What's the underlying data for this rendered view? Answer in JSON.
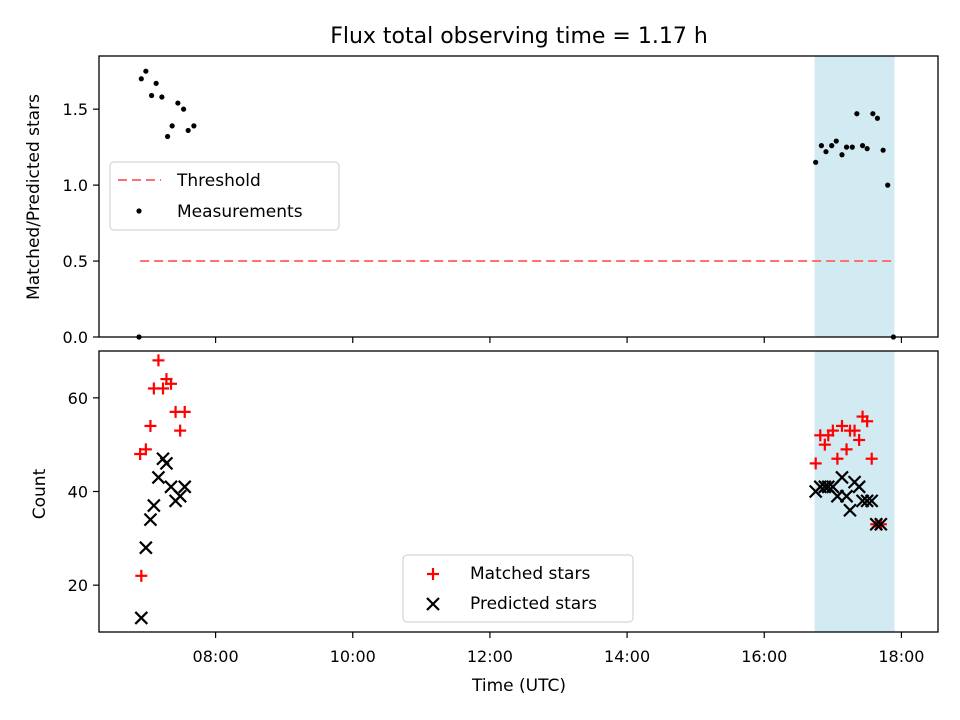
{
  "chart_data": [
    {
      "type": "scatter",
      "title": "Flux total observing time = 1.17 h",
      "xlabel": "",
      "ylabel": "Matched/Predicted stars",
      "xlim": [
        "06:18",
        "18:32"
      ],
      "ylim": [
        0,
        1.85
      ],
      "yticks": [
        "0.0",
        "0.5",
        "1.0",
        "1.5"
      ],
      "legend_position": "center-left",
      "highlight_band": {
        "x": [
          "16:44",
          "17:54"
        ],
        "color": "#add8e6"
      },
      "threshold": {
        "name": "Threshold",
        "value": 0.5,
        "x": [
          "06:54",
          "17:54"
        ],
        "color": "#ff7070"
      },
      "series": [
        {
          "name": "Measurements",
          "color": "#000000",
          "points": [
            [
              "06:53",
              0.0
            ],
            [
              "06:55",
              1.7
            ],
            [
              "06:59",
              1.75
            ],
            [
              "07:04",
              1.59
            ],
            [
              "07:08",
              1.67
            ],
            [
              "07:13",
              1.58
            ],
            [
              "07:18",
              1.32
            ],
            [
              "07:22",
              1.39
            ],
            [
              "07:27",
              1.54
            ],
            [
              "07:32",
              1.5
            ],
            [
              "07:36",
              1.36
            ],
            [
              "07:41",
              1.39
            ],
            [
              "16:45",
              1.15
            ],
            [
              "16:50",
              1.26
            ],
            [
              "16:54",
              1.22
            ],
            [
              "16:59",
              1.26
            ],
            [
              "17:03",
              1.29
            ],
            [
              "17:08",
              1.2
            ],
            [
              "17:12",
              1.25
            ],
            [
              "17:17",
              1.25
            ],
            [
              "17:21",
              1.47
            ],
            [
              "17:26",
              1.26
            ],
            [
              "17:30",
              1.24
            ],
            [
              "17:35",
              1.47
            ],
            [
              "17:39",
              1.44
            ],
            [
              "17:44",
              1.23
            ],
            [
              "17:48",
              1.0
            ],
            [
              "17:53",
              0.0
            ]
          ]
        }
      ]
    },
    {
      "type": "scatter",
      "title": "",
      "xlabel": "Time (UTC)",
      "ylabel": "Count",
      "xlim": [
        "06:18",
        "18:32"
      ],
      "ylim": [
        10,
        70
      ],
      "xticks": [
        "08:00",
        "10:00",
        "12:00",
        "14:00",
        "16:00",
        "18:00"
      ],
      "yticks": [
        "20",
        "40",
        "60"
      ],
      "legend_position": "lower-center",
      "highlight_band": {
        "x": [
          "16:44",
          "17:54"
        ],
        "color": "#add8e6"
      },
      "series": [
        {
          "name": "Matched stars",
          "marker": "plus",
          "color": "#ff0000",
          "points": [
            [
              "06:54",
              48
            ],
            [
              "06:55",
              22
            ],
            [
              "06:59",
              49
            ],
            [
              "07:03",
              54
            ],
            [
              "07:06",
              62
            ],
            [
              "07:10",
              68
            ],
            [
              "07:14",
              62
            ],
            [
              "07:17",
              64
            ],
            [
              "07:21",
              63
            ],
            [
              "07:25",
              57
            ],
            [
              "07:29",
              53
            ],
            [
              "07:33",
              57
            ],
            [
              "16:45",
              46
            ],
            [
              "16:49",
              52
            ],
            [
              "16:53",
              50
            ],
            [
              "16:56",
              52
            ],
            [
              "17:00",
              53
            ],
            [
              "17:04",
              47
            ],
            [
              "17:08",
              54
            ],
            [
              "17:12",
              49
            ],
            [
              "17:15",
              53
            ],
            [
              "17:19",
              53
            ],
            [
              "17:23",
              51
            ],
            [
              "17:26",
              56
            ],
            [
              "17:30",
              55
            ],
            [
              "17:34",
              47
            ],
            [
              "17:38",
              33
            ],
            [
              "17:42",
              33
            ]
          ]
        },
        {
          "name": "Predicted stars",
          "marker": "x",
          "color": "#000000",
          "points": [
            [
              "06:55",
              13
            ],
            [
              "06:59",
              28
            ],
            [
              "07:03",
              34
            ],
            [
              "07:06",
              37
            ],
            [
              "07:10",
              43
            ],
            [
              "07:14",
              47
            ],
            [
              "07:17",
              46
            ],
            [
              "07:21",
              41
            ],
            [
              "07:25",
              38
            ],
            [
              "07:29",
              39
            ],
            [
              "07:33",
              41
            ],
            [
              "16:45",
              40
            ],
            [
              "16:49",
              41
            ],
            [
              "16:53",
              41
            ],
            [
              "16:56",
              41
            ],
            [
              "17:00",
              41
            ],
            [
              "17:04",
              39
            ],
            [
              "17:08",
              43
            ],
            [
              "17:12",
              39
            ],
            [
              "17:15",
              36
            ],
            [
              "17:19",
              42
            ],
            [
              "17:23",
              41
            ],
            [
              "17:26",
              38
            ],
            [
              "17:30",
              38
            ],
            [
              "17:34",
              38
            ],
            [
              "17:38",
              33
            ],
            [
              "17:42",
              33
            ]
          ]
        }
      ]
    }
  ]
}
